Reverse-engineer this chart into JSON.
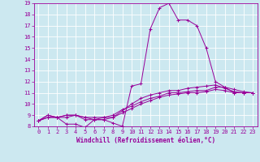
{
  "xlabel": "Windchill (Refroidissement éolien,°C)",
  "bg_color": "#cce8f0",
  "line_color": "#990099",
  "grid_color": "#ffffff",
  "x_min": -0.5,
  "x_max": 23.5,
  "y_min": 8,
  "y_max": 19,
  "series": [
    [
      8.5,
      9.0,
      8.8,
      8.2,
      8.2,
      7.9,
      8.6,
      8.6,
      8.3,
      8.0,
      11.6,
      11.8,
      16.7,
      18.6,
      19.0,
      17.5,
      17.5,
      17.0,
      15.0,
      12.0,
      11.5,
      11.0,
      11.0,
      11.0
    ],
    [
      8.5,
      9.0,
      8.8,
      8.8,
      9.0,
      8.6,
      8.6,
      8.6,
      8.8,
      9.4,
      10.0,
      10.5,
      10.8,
      11.0,
      11.2,
      11.2,
      11.4,
      11.5,
      11.6,
      11.7,
      11.4,
      11.1,
      11.0,
      11.0
    ],
    [
      8.5,
      8.8,
      8.8,
      9.0,
      9.0,
      8.8,
      8.8,
      8.8,
      9.0,
      9.5,
      9.8,
      10.2,
      10.5,
      10.7,
      11.0,
      11.0,
      11.1,
      11.2,
      11.2,
      11.5,
      11.5,
      11.3,
      11.1,
      11.0
    ],
    [
      8.5,
      8.8,
      8.8,
      9.0,
      9.0,
      8.8,
      8.6,
      8.8,
      8.8,
      9.2,
      9.6,
      10.0,
      10.3,
      10.6,
      10.8,
      10.9,
      11.0,
      11.0,
      11.1,
      11.3,
      11.2,
      11.0,
      11.0,
      11.0
    ]
  ],
  "xtick_labels": [
    "0",
    "1",
    "2",
    "3",
    "4",
    "5",
    "6",
    "7",
    "8",
    "9",
    "10",
    "11",
    "12",
    "13",
    "14",
    "15",
    "16",
    "17",
    "18",
    "19",
    "20",
    "21",
    "22",
    "23"
  ],
  "ytick_labels": [
    "8",
    "9",
    "10",
    "11",
    "12",
    "13",
    "14",
    "15",
    "16",
    "17",
    "18",
    "19"
  ],
  "label_fontsize": 5.5,
  "tick_fontsize": 5.0,
  "marker": "+"
}
